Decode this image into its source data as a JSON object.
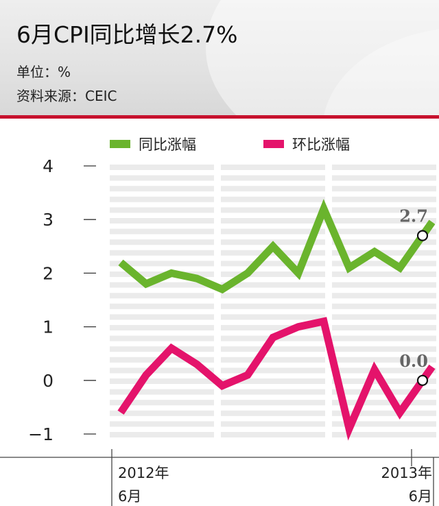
{
  "header": {
    "title": "6月CPI同比增长2.7%",
    "unit": "单位：%",
    "source": "资料来源：CEIC"
  },
  "colors": {
    "series_yoy": "#6ab42d",
    "series_mom": "#e4136b",
    "accent_line": "#c7122e",
    "stripes": "#ebebeb"
  },
  "chart_data": {
    "type": "line",
    "ylim": [
      -1,
      4
    ],
    "yticks": [
      "4",
      "3",
      "2",
      "1",
      "0",
      "−1"
    ],
    "ytick_values": [
      4,
      3,
      2,
      1,
      0,
      -1
    ],
    "x_start_label": [
      "2012年",
      "6月"
    ],
    "x_end_label": [
      "2013年",
      "6月"
    ],
    "legend_position": "top",
    "series": [
      {
        "name": "同比涨幅",
        "color": "#6ab42d",
        "values": [
          2.2,
          1.8,
          2.0,
          1.9,
          1.7,
          2.0,
          2.5,
          2.0,
          3.2,
          2.1,
          2.4,
          2.1,
          2.7
        ],
        "end_label": "2.7"
      },
      {
        "name": "环比涨幅",
        "color": "#e4136b",
        "values": [
          -0.6,
          0.1,
          0.6,
          0.3,
          -0.1,
          0.1,
          0.8,
          1.0,
          1.1,
          -0.9,
          0.2,
          -0.6,
          0.0
        ],
        "end_label": "0.0"
      }
    ]
  }
}
